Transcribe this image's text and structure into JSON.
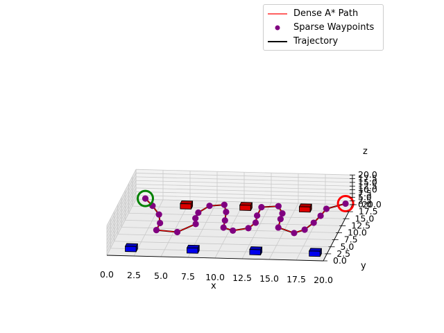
{
  "chart_data": {
    "type": "3d-line",
    "xlabel": "x",
    "ylabel": "y",
    "zlabel": "z",
    "xlim": [
      0,
      20
    ],
    "ylim": [
      0,
      20
    ],
    "zlim": [
      0,
      20
    ],
    "x_ticks": [
      "0.0",
      "2.5",
      "5.0",
      "7.5",
      "10.0",
      "12.5",
      "15.0",
      "17.5",
      "20.0"
    ],
    "y_ticks": [
      "0.0",
      "2.5",
      "5.0",
      "7.5",
      "10.0",
      "12.5",
      "15.0",
      "17.5",
      "20.0"
    ],
    "z_ticks": [
      "0.0",
      "2.5",
      "5.0",
      "7.5",
      "10.0",
      "12.5",
      "15.0",
      "17.5",
      "20.0"
    ],
    "grid": true,
    "legend_position": "top-right",
    "legend": [
      {
        "label": "Dense A* Path",
        "kind": "line",
        "color": "#ff0000"
      },
      {
        "label": "Sparse Waypoints",
        "kind": "marker",
        "color": "#800080"
      },
      {
        "label": "Trajectory",
        "kind": "line",
        "color": "#000000"
      }
    ],
    "start": {
      "x": 1,
      "y": 19,
      "z": 2.5,
      "color": "#008000"
    },
    "goal": {
      "x": 19.5,
      "y": 19,
      "z": 2.5,
      "color": "#ff0000"
    },
    "obstacles": [
      {
        "x": 1.5,
        "y": 1.5,
        "z": 0,
        "dx": 1,
        "dy": 1,
        "dz": 3.5,
        "color": "#0000ee"
      },
      {
        "x": 7.2,
        "y": 1.5,
        "z": 0,
        "dx": 1,
        "dy": 1,
        "dz": 3.5,
        "color": "#0000ee"
      },
      {
        "x": 13.0,
        "y": 1.5,
        "z": 0,
        "dx": 1,
        "dy": 1,
        "dz": 3.5,
        "color": "#0000ee"
      },
      {
        "x": 18.5,
        "y": 1.5,
        "z": 0,
        "dx": 1,
        "dy": 1,
        "dz": 3.5,
        "color": "#0000ee"
      },
      {
        "x": 4.5,
        "y": 17,
        "z": 0,
        "dx": 1,
        "dy": 1,
        "dz": 3.5,
        "color": "#dd0000"
      },
      {
        "x": 10.0,
        "y": 17,
        "z": 0,
        "dx": 1,
        "dy": 1,
        "dz": 3.5,
        "color": "#dd0000"
      },
      {
        "x": 15.5,
        "y": 17,
        "z": 0,
        "dx": 1,
        "dy": 1,
        "dz": 3.5,
        "color": "#dd0000"
      }
    ],
    "waypoints": [
      [
        1.0,
        19.0,
        2.5
      ],
      [
        2.0,
        16.5,
        2.5
      ],
      [
        3.0,
        13.5,
        2.5
      ],
      [
        3.5,
        10.5,
        2.5
      ],
      [
        3.5,
        8.0,
        2.5
      ],
      [
        5.5,
        7.5,
        2.5
      ],
      [
        6.8,
        10.5,
        2.5
      ],
      [
        6.5,
        12.5,
        2.5
      ],
      [
        6.5,
        14.5,
        2.5
      ],
      [
        7.2,
        17.0,
        2.5
      ],
      [
        8.5,
        17.5,
        2.5
      ],
      [
        9.0,
        15.0,
        2.5
      ],
      [
        9.3,
        12.0,
        2.5
      ],
      [
        9.5,
        9.5,
        2.5
      ],
      [
        10.5,
        8.5,
        2.5
      ],
      [
        11.8,
        9.5,
        2.5
      ],
      [
        12.2,
        11.5,
        2.5
      ],
      [
        12.0,
        14.0,
        2.5
      ],
      [
        12.0,
        17.0,
        2.5
      ],
      [
        13.5,
        17.5,
        2.5
      ],
      [
        14.2,
        15.0,
        2.5
      ],
      [
        14.3,
        13.0,
        2.5
      ],
      [
        14.5,
        10.0,
        2.5
      ],
      [
        16.2,
        8.2,
        2.5
      ],
      [
        17.0,
        9.5,
        2.5
      ],
      [
        17.5,
        12.0,
        2.5
      ],
      [
        17.8,
        14.5,
        2.5
      ],
      [
        18.0,
        17.0,
        2.5
      ],
      [
        19.5,
        19.0,
        2.5
      ]
    ]
  }
}
